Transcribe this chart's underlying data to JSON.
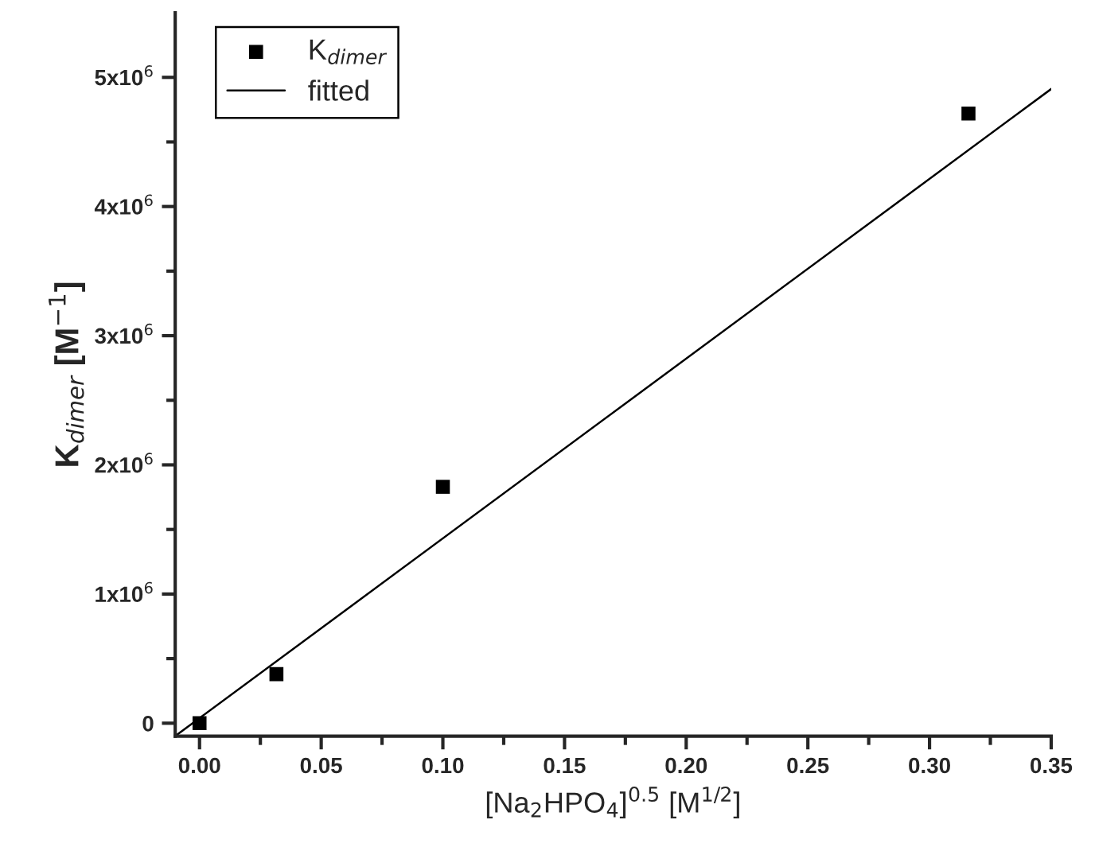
{
  "chart_data": {
    "type": "scatter",
    "xlabel": "[Na$_{2}$HPO$_{4}$]$^{0.5}$ [M$^{1/2}$]",
    "ylabel": "K$_{dimer}$ [M$^{−1}$]",
    "x": [
      0,
      0.0316,
      0.1,
      0.316
    ],
    "series": [
      {
        "name": "K$_{dimer}$",
        "color": "#000000",
        "marker": "square",
        "values": [
          0,
          380000,
          1830000,
          4720000
        ]
      },
      {
        "name": "fitted",
        "type": "line",
        "color": "#000000",
        "marker": "none",
        "line_style": "solid",
        "x": [
          -0.01,
          0.35
        ],
        "values": [
          -100000,
          4910000
        ]
      }
    ],
    "xlim": [
      -0.01,
      0.35
    ],
    "ylim": [
      -100000,
      5500000
    ],
    "xticks": [
      {
        "value": 0,
        "label": "0.00"
      },
      {
        "value": 0.05,
        "label": "0.05"
      },
      {
        "value": 0.1,
        "label": "0.10"
      },
      {
        "value": 0.15,
        "label": "0.15"
      },
      {
        "value": 0.2,
        "label": "0.20"
      },
      {
        "value": 0.25,
        "label": "0.25"
      },
      {
        "value": 0.3,
        "label": "0.30"
      },
      {
        "value": 0.35,
        "label": "0.35"
      }
    ],
    "yticks": [
      0,
      {
        "value": 1000000,
        "label": "1x10$^{6}$"
      },
      {
        "value": 2000000,
        "label": "2x10$^{6}$"
      },
      {
        "value": 3000000,
        "label": "3x10$^{6}$"
      },
      {
        "value": 4000000,
        "label": "4x10$^{6}$"
      },
      {
        "value": 5000000,
        "label": "5x10$^{6}$"
      }
    ],
    "legend": "top left",
    "grid": false
  }
}
